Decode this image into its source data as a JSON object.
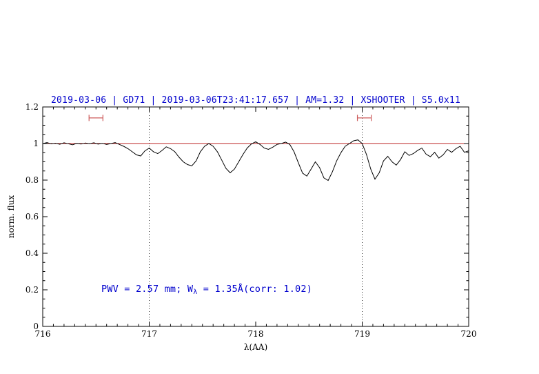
{
  "figure": {
    "background": "#ffffff"
  },
  "chart_data": {
    "type": "line",
    "title": "2019-03-06 | GD71 | 2019-03-06T23:41:17.657 | AM=1.32 | XSHOOTER | S5.0x11",
    "title_color": "#0000cd",
    "xlabel": "λ(AA)",
    "ylabel": "norm. flux",
    "xlim": [
      716,
      720
    ],
    "ylim": [
      0,
      1.2
    ],
    "x_ticks": [
      716,
      717,
      718,
      719,
      720
    ],
    "x_tick_labels": [
      "716",
      "717",
      "718",
      "719",
      "720"
    ],
    "x_minor_step": 0.1,
    "y_ticks": [
      0,
      0.2,
      0.4,
      0.6,
      0.8,
      1,
      1.2
    ],
    "y_tick_labels": [
      "0",
      "0.2",
      "0.4",
      "0.6",
      "0.8",
      "1",
      "1.2"
    ],
    "y_minor_step": 0.05,
    "grid": "off",
    "frame": "full-box",
    "series": [
      {
        "name": "normalized-spectrum",
        "color": "#000000",
        "x_start": 716.0,
        "x_step": 0.04,
        "values": [
          1.0,
          1.005,
          0.998,
          1.002,
          0.996,
          1.004,
          0.999,
          0.993,
          1.001,
          0.997,
          1.003,
          0.999,
          1.004,
          0.997,
          1.001,
          0.995,
          1.0,
          1.005,
          0.995,
          0.985,
          0.972,
          0.955,
          0.938,
          0.932,
          0.96,
          0.975,
          0.955,
          0.945,
          0.962,
          0.982,
          0.972,
          0.955,
          0.925,
          0.9,
          0.885,
          0.878,
          0.905,
          0.955,
          0.985,
          1.0,
          0.985,
          0.955,
          0.91,
          0.865,
          0.84,
          0.86,
          0.9,
          0.94,
          0.975,
          0.998,
          1.01,
          0.995,
          0.975,
          0.968,
          0.98,
          0.995,
          1.0,
          1.008,
          0.995,
          0.955,
          0.895,
          0.838,
          0.822,
          0.86,
          0.9,
          0.868,
          0.812,
          0.798,
          0.845,
          0.905,
          0.95,
          0.985,
          1.0,
          1.015,
          1.02,
          1.0,
          0.94,
          0.86,
          0.805,
          0.84,
          0.905,
          0.93,
          0.9,
          0.882,
          0.912,
          0.955,
          0.935,
          0.945,
          0.962,
          0.975,
          0.942,
          0.928,
          0.952,
          0.92,
          0.938,
          0.968,
          0.952,
          0.972,
          0.985,
          0.952,
          0.96
        ]
      }
    ],
    "reference_line": {
      "y": 1.0,
      "color": "#bb2222"
    },
    "vlines": [
      {
        "x": 717,
        "style": "dotted",
        "color": "#222222"
      },
      {
        "x": 719,
        "style": "dotted",
        "color": "#222222"
      }
    ],
    "range_markers": [
      {
        "x_center": 716.5,
        "half_width": 0.065,
        "y": 1.14,
        "color": "#cd5c5c"
      },
      {
        "x_center": 719.02,
        "half_width": 0.065,
        "y": 1.14,
        "color": "#cd5c5c"
      }
    ],
    "annotation": {
      "parts": [
        "PWV = 2.57 mm; W",
        "λ",
        " = 1.35Å(corr: 1.02)"
      ],
      "color": "#0000cd",
      "x": 716.55,
      "y": 0.2
    }
  }
}
